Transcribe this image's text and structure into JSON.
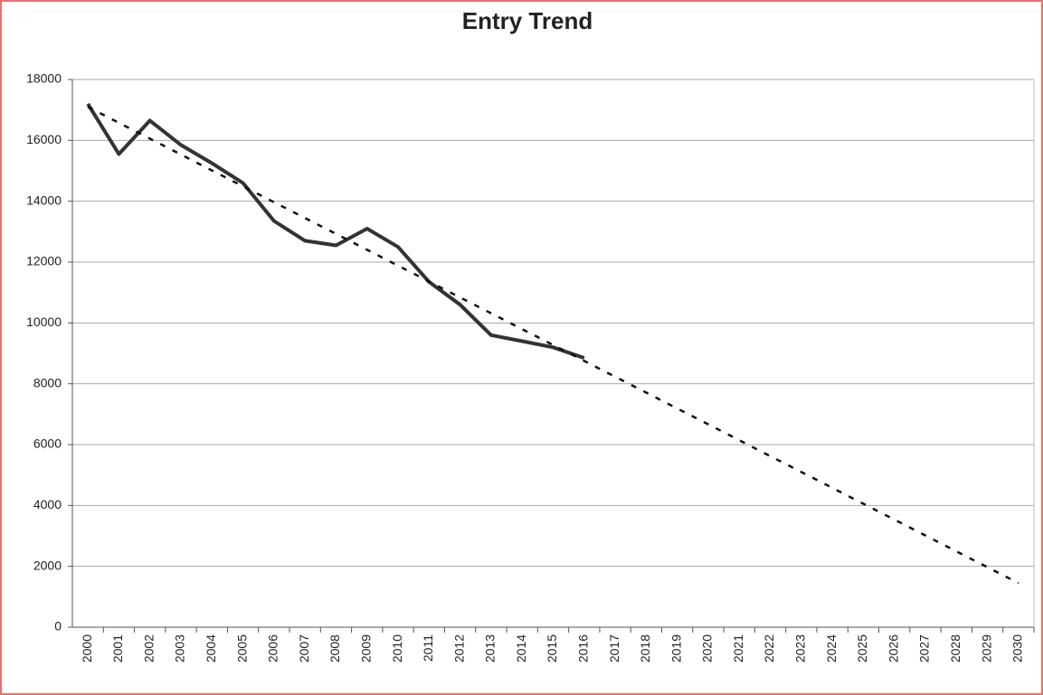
{
  "chart_data": {
    "type": "line",
    "title": "Entry Trend",
    "categories": [
      "2000",
      "2001",
      "2002",
      "2003",
      "2004",
      "2005",
      "2006",
      "2007",
      "2008",
      "2009",
      "2010",
      "2011",
      "2012",
      "2013",
      "2014",
      "2015",
      "2016",
      "2017",
      "2018",
      "2019",
      "2020",
      "2021",
      "2022",
      "2023",
      "2024",
      "2025",
      "2026",
      "2027",
      "2028",
      "2029",
      "2030"
    ],
    "series": [
      {
        "color": "#333333",
        "style": "solid",
        "values": [
          17200,
          15550,
          16650,
          15850,
          15250,
          14600,
          13350,
          12700,
          12550,
          13100,
          12500,
          11350,
          10600,
          9600,
          9400,
          9200,
          8850,
          null,
          null,
          null,
          null,
          null,
          null,
          null,
          null,
          null,
          null,
          null,
          null,
          null,
          null
        ]
      },
      {
        "color": "#111111",
        "style": "dashed",
        "values": [
          17100,
          16578,
          16057,
          15535,
          15013,
          14492,
          13970,
          13448,
          12927,
          12405,
          11883,
          11362,
          10840,
          10318,
          9797,
          9275,
          8753,
          8232,
          7710,
          7188,
          6667,
          6145,
          5623,
          5102,
          4580,
          4058,
          3537,
          3015,
          2493,
          1972,
          1450
        ]
      }
    ],
    "ylim": [
      0,
      18000
    ],
    "yticks": [
      0,
      2000,
      4000,
      6000,
      8000,
      10000,
      12000,
      14000,
      16000,
      18000
    ],
    "grid": true
  }
}
